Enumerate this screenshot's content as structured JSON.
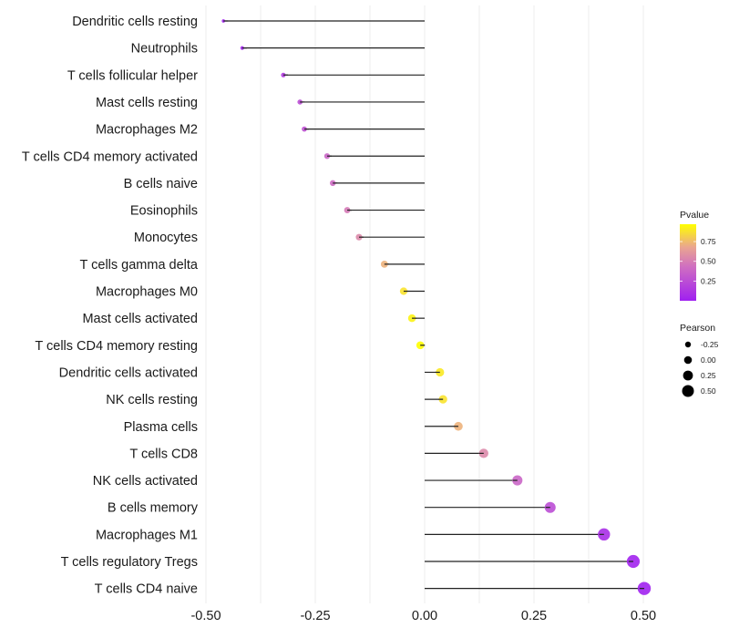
{
  "chart_data": {
    "type": "lollipop",
    "title": "",
    "xlabel": "",
    "ylabel": "",
    "xlim": [
      -0.5,
      0.5
    ],
    "x_ticks": [
      -0.5,
      -0.25,
      0,
      0.25,
      0.5
    ],
    "x_tick_labels": [
      "-0.50",
      "-0.25",
      "0.00",
      "0.25",
      "0.50"
    ],
    "grid": true,
    "categories": [
      "Dendritic cells resting",
      "Neutrophils",
      "T cells follicular helper",
      "Mast cells resting",
      "Macrophages M2",
      "T cells CD4 memory activated",
      "B cells naive",
      "Eosinophils",
      "Monocytes",
      "T cells gamma delta",
      "Macrophages M0",
      "Mast cells activated",
      "T cells CD4 memory resting",
      "Dendritic cells activated",
      "NK cells resting",
      "Plasma cells",
      "T cells CD8",
      "NK cells activated",
      "B cells memory",
      "Macrophages M1",
      "T cells regulatory  Tregs ",
      "T cells CD4 naive"
    ],
    "series": [
      {
        "name": "Pearson",
        "values": [
          -0.46,
          -0.417,
          -0.323,
          -0.285,
          -0.275,
          -0.223,
          -0.21,
          -0.177,
          -0.15,
          -0.092,
          -0.048,
          -0.029,
          -0.01,
          0.035,
          0.042,
          0.077,
          0.135,
          0.212,
          0.287,
          0.41,
          0.477,
          0.502
        ]
      },
      {
        "name": "Pvalue",
        "values": [
          0.01,
          0.02,
          0.15,
          0.25,
          0.27,
          0.38,
          0.41,
          0.48,
          0.55,
          0.72,
          0.88,
          0.93,
          0.97,
          0.9,
          0.88,
          0.72,
          0.55,
          0.38,
          0.25,
          0.08,
          0.02,
          0.01
        ]
      }
    ],
    "legend": {
      "placement": "right",
      "color": {
        "title": "Pvalue",
        "ticks": [
          0.25,
          0.5,
          0.75
        ],
        "tick_labels": [
          "0.25",
          "0.50",
          "0.75"
        ],
        "range": [
          0,
          0.97
        ],
        "low_color": "#A020F0",
        "mid_color": "#E088A8",
        "high_color": "#FFFF00"
      },
      "size": {
        "title": "Pearson",
        "values": [
          -0.25,
          0,
          0.25,
          0.5
        ],
        "labels": [
          "-0.25",
          "0.00",
          "0.25",
          "0.50"
        ]
      }
    }
  }
}
